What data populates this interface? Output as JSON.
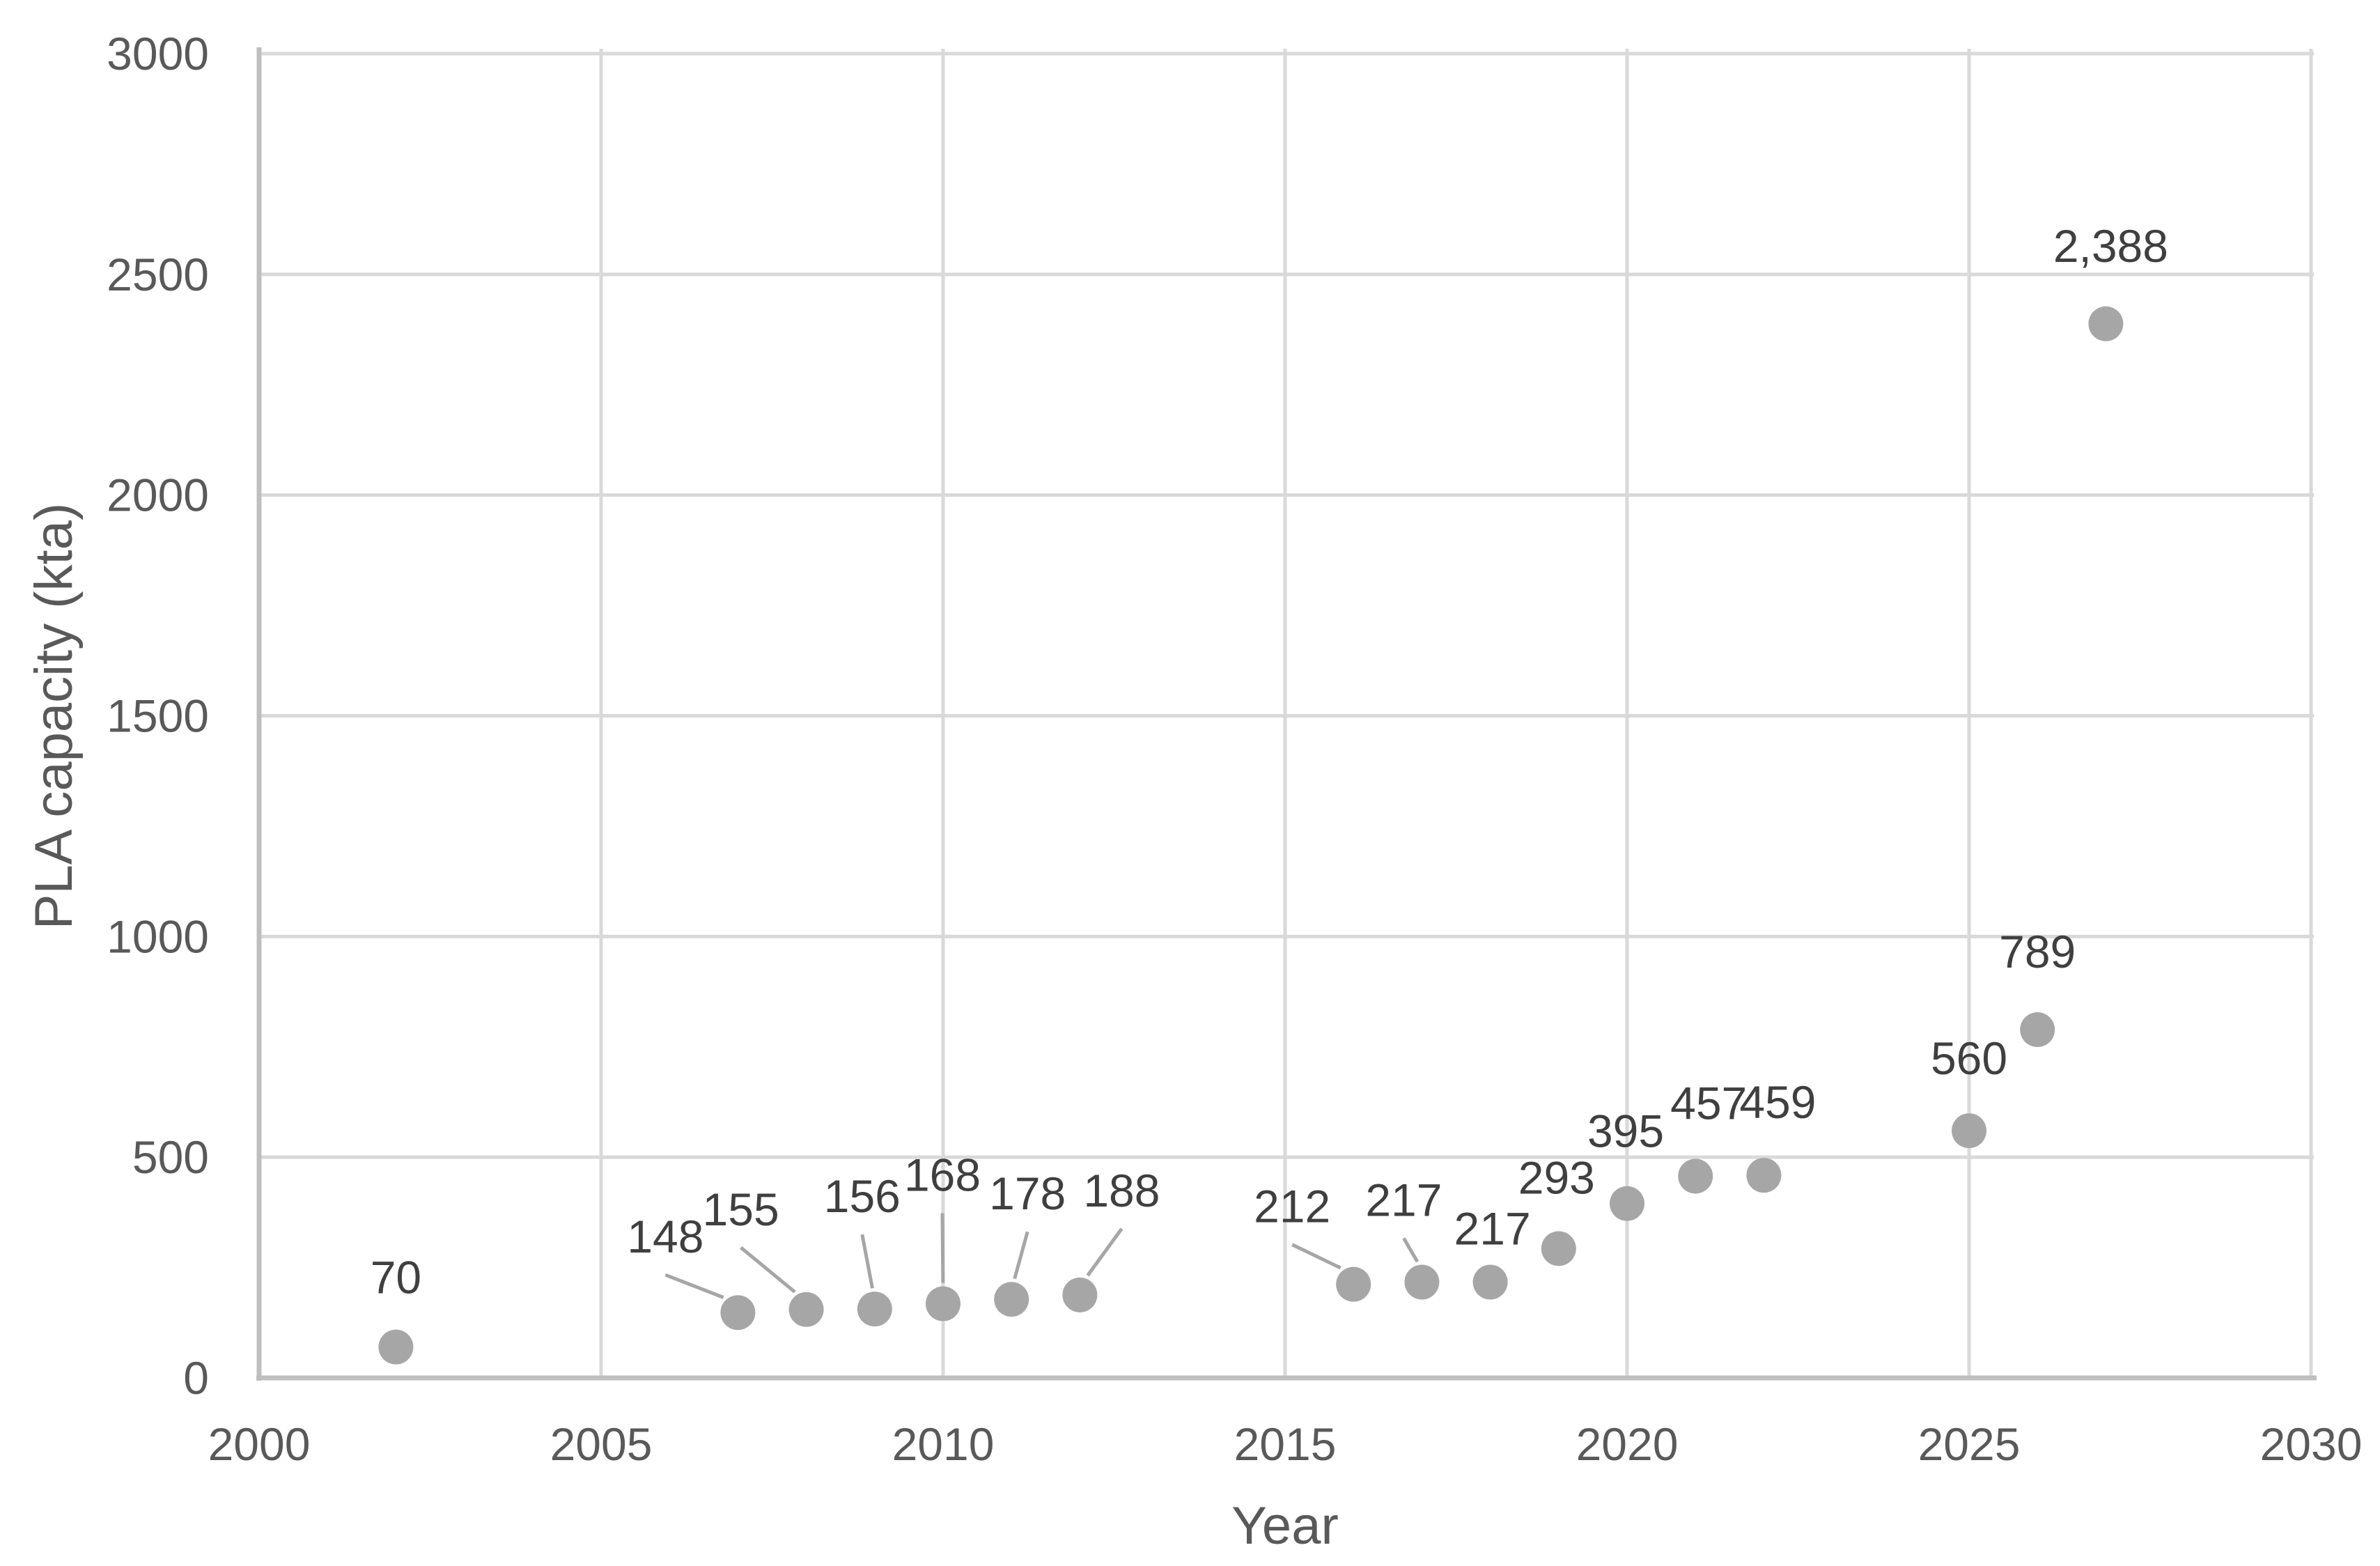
{
  "page": {
    "background": "#ffffff"
  },
  "style": {
    "grid_color": "#d9d9d9",
    "axis_line_color": "#bfbfbf",
    "tick_label_color": "#595959",
    "data_label_color": "#3f3f3f",
    "marker_color": "#a6a6a6",
    "leader_line_color": "#a6a6a6"
  },
  "chart_data": {
    "type": "scatter",
    "title": "",
    "xlabel": "Year",
    "ylabel": "PLA capacity (kta)",
    "xlim": [
      2000,
      2030
    ],
    "ylim": [
      0,
      3000
    ],
    "x_ticks": [
      "2000",
      "2005",
      "2010",
      "2015",
      "2020",
      "2025",
      "2030"
    ],
    "y_ticks": [
      "0",
      "500",
      "1000",
      "1500",
      "2000",
      "2500",
      "3000"
    ],
    "grid": true,
    "legend": false,
    "series": [
      {
        "name": "PLA capacity",
        "points": [
          {
            "x": 2002,
            "y": 70,
            "label": "70",
            "label_dx": 0,
            "label_dy": -100,
            "leader": false
          },
          {
            "x": 2007,
            "y": 148,
            "label": "148",
            "label_dx": -104,
            "label_dy": -109,
            "leader": true
          },
          {
            "x": 2008,
            "y": 155,
            "label": "155",
            "label_dx": -94,
            "label_dy": -144,
            "leader": true
          },
          {
            "x": 2009,
            "y": 156,
            "label": "156",
            "label_dx": -18,
            "label_dy": -162,
            "leader": true
          },
          {
            "x": 2010,
            "y": 168,
            "label": "168",
            "label_dx": -1,
            "label_dy": -185,
            "leader": true
          },
          {
            "x": 2011,
            "y": 178,
            "label": "178",
            "label_dx": 23,
            "label_dy": -152,
            "leader": true
          },
          {
            "x": 2012,
            "y": 188,
            "label": "188",
            "label_dx": 60,
            "label_dy": -150,
            "leader": true
          },
          {
            "x": 2016,
            "y": 212,
            "label": "212",
            "label_dx": -88,
            "label_dy": -112,
            "leader": true
          },
          {
            "x": 2017,
            "y": 217,
            "label": "217",
            "label_dx": -26,
            "label_dy": -118,
            "leader": true
          },
          {
            "x": 2018,
            "y": 217,
            "label": "217",
            "label_dx": 3,
            "label_dy": -77,
            "leader": false
          },
          {
            "x": 2019,
            "y": 293,
            "label": "293",
            "label_dx": -3,
            "label_dy": -102,
            "leader": false
          },
          {
            "x": 2020,
            "y": 395,
            "label": "395",
            "label_dx": -2,
            "label_dy": -104,
            "leader": false
          },
          {
            "x": 2021,
            "y": 457,
            "label": "457",
            "label_dx": 19,
            "label_dy": -105,
            "leader": false
          },
          {
            "x": 2022,
            "y": 459,
            "label": "459",
            "label_dx": 20,
            "label_dy": -105,
            "leader": false
          },
          {
            "x": 2025,
            "y": 560,
            "label": "560",
            "label_dx": 0,
            "label_dy": -104,
            "leader": false
          },
          {
            "x": 2026,
            "y": 789,
            "label": "789",
            "label_dx": 0,
            "label_dy": -112,
            "leader": false
          },
          {
            "x": 2027,
            "y": 2388,
            "label": "2,388",
            "label_dx": 7,
            "label_dy": -112,
            "leader": false
          }
        ]
      }
    ]
  }
}
